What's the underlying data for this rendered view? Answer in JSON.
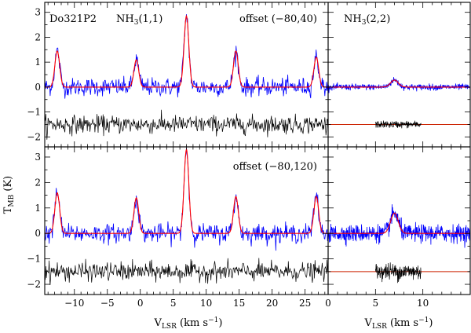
{
  "chart_data": {
    "type": "line",
    "title": "",
    "ylabel_main": "T",
    "ylabel_sub": "MB",
    "ylabel_unit": " (K)",
    "xlabel_main": "V",
    "xlabel_sub": "LSR",
    "xlabel_unit_pre": " (km s",
    "xlabel_unit_sup": "−1",
    "xlabel_unit_post": ")",
    "colors": {
      "spectrum": "#0000ff",
      "fit": "#ff0000",
      "residual": "#000000",
      "baseline": "#cc2200"
    },
    "left_xlim": [
      -14.5,
      28.5
    ],
    "right_xlim": [
      0,
      15
    ],
    "ylim": [
      -2.4,
      3.4
    ],
    "left_xticks": [
      -10,
      -5,
      0,
      5,
      10,
      15,
      20,
      25
    ],
    "right_xticks": [
      0,
      5,
      10
    ],
    "yticks": [
      -2,
      -1,
      0,
      1,
      2,
      3
    ],
    "source": "Do321P2",
    "panels": [
      {
        "id": "top-left",
        "molecule": "NH",
        "molecule_sub": "3",
        "transition": "(1,1)",
        "offset_label": "offset (−80,40)",
        "noise_rms": 0.18,
        "components": [
          {
            "v": -12.6,
            "peak": 1.45,
            "width": 0.36
          },
          {
            "v": -0.6,
            "peak": 1.1,
            "width": 0.36
          },
          {
            "v": 7.0,
            "peak": 2.85,
            "width": 0.36
          },
          {
            "v": 14.5,
            "peak": 1.45,
            "width": 0.36
          },
          {
            "v": 26.7,
            "peak": 1.2,
            "width": 0.36
          }
        ],
        "residual_offset": -1.5,
        "residual_rms": 0.18,
        "residual_range": [
          -14.5,
          28.5
        ]
      },
      {
        "id": "top-right",
        "molecule": "NH",
        "molecule_sub": "3",
        "transition": "(2,2)",
        "offset_label": "",
        "noise_rms": 0.06,
        "components": [
          {
            "v": 7.0,
            "peak": 0.28,
            "width": 0.4
          }
        ],
        "residual_offset": -1.5,
        "residual_rms": 0.07,
        "residual_range": [
          5.0,
          9.8
        ]
      },
      {
        "id": "bottom-left",
        "molecule": "",
        "molecule_sub": "",
        "transition": "",
        "offset_label": "offset (−80,120)",
        "noise_rms": 0.18,
        "components": [
          {
            "v": -12.6,
            "peak": 1.6,
            "width": 0.36
          },
          {
            "v": -0.6,
            "peak": 1.4,
            "width": 0.36
          },
          {
            "v": 7.0,
            "peak": 3.3,
            "width": 0.36
          },
          {
            "v": 14.5,
            "peak": 1.45,
            "width": 0.36
          },
          {
            "v": 26.7,
            "peak": 1.45,
            "width": 0.36
          }
        ],
        "residual_offset": -1.5,
        "residual_rms": 0.18,
        "residual_range": [
          -14.5,
          28.5
        ]
      },
      {
        "id": "bottom-right",
        "molecule": "",
        "molecule_sub": "",
        "transition": "",
        "offset_label": "",
        "noise_rms": 0.17,
        "components": [
          {
            "v": 7.0,
            "peak": 0.8,
            "width": 0.4
          }
        ],
        "residual_offset": -1.5,
        "residual_rms": 0.17,
        "residual_range": [
          5.0,
          9.8
        ]
      }
    ]
  }
}
